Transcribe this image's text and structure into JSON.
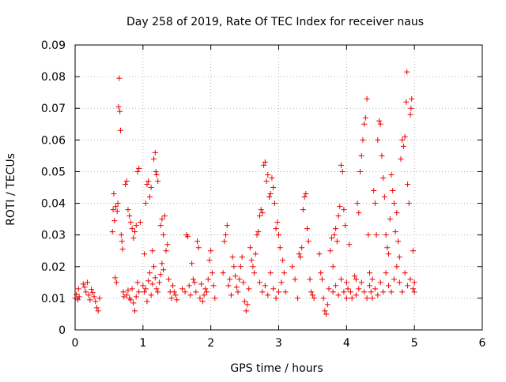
{
  "chart_data": {
    "type": "scatter",
    "title": "Day 258 of 2019, Rate Of TEC Index for receiver naus",
    "xlabel": "GPS time / hours",
    "ylabel": "ROTI / TECUs",
    "xlim": [
      0,
      6
    ],
    "ylim": [
      0,
      0.09
    ],
    "xticks": [
      "0",
      "1",
      "2",
      "3",
      "4",
      "5",
      "6"
    ],
    "yticks": [
      "0",
      "0.01",
      "0.02",
      "0.03",
      "0.04",
      "0.05",
      "0.06",
      "0.07",
      "0.08",
      "0.09"
    ],
    "grid": true,
    "marker": "+",
    "color": "#ee0000",
    "series": [
      {
        "name": "ROTI",
        "points": [
          [
            0.0,
            0.01
          ],
          [
            0.02,
            0.0112
          ],
          [
            0.04,
            0.0095
          ],
          [
            0.05,
            0.013
          ],
          [
            0.06,
            0.0105
          ],
          [
            0.12,
            0.0145
          ],
          [
            0.14,
            0.0135
          ],
          [
            0.16,
            0.012
          ],
          [
            0.18,
            0.015
          ],
          [
            0.2,
            0.011
          ],
          [
            0.22,
            0.0095
          ],
          [
            0.24,
            0.0128
          ],
          [
            0.26,
            0.0118
          ],
          [
            0.28,
            0.0105
          ],
          [
            0.3,
            0.009
          ],
          [
            0.32,
            0.007
          ],
          [
            0.34,
            0.006
          ],
          [
            0.36,
            0.01
          ],
          [
            0.55,
            0.031
          ],
          [
            0.56,
            0.038
          ],
          [
            0.57,
            0.043
          ],
          [
            0.58,
            0.0345
          ],
          [
            0.59,
            0.0165
          ],
          [
            0.6,
            0.039
          ],
          [
            0.61,
            0.015
          ],
          [
            0.62,
            0.0375
          ],
          [
            0.63,
            0.04
          ],
          [
            0.64,
            0.0705
          ],
          [
            0.65,
            0.0795
          ],
          [
            0.66,
            0.069
          ],
          [
            0.67,
            0.063
          ],
          [
            0.68,
            0.03
          ],
          [
            0.69,
            0.028
          ],
          [
            0.7,
            0.0255
          ],
          [
            0.71,
            0.012
          ],
          [
            0.72,
            0.0105
          ],
          [
            0.74,
            0.046
          ],
          [
            0.76,
            0.047
          ],
          [
            0.78,
            0.038
          ],
          [
            0.8,
            0.036
          ],
          [
            0.82,
            0.034
          ],
          [
            0.84,
            0.032
          ],
          [
            0.86,
            0.029
          ],
          [
            0.88,
            0.031
          ],
          [
            0.9,
            0.033
          ],
          [
            0.92,
            0.05
          ],
          [
            0.94,
            0.051
          ],
          [
            0.96,
            0.034
          ],
          [
            0.76,
            0.011
          ],
          [
            0.78,
            0.0125
          ],
          [
            0.8,
            0.01
          ],
          [
            0.82,
            0.0095
          ],
          [
            0.84,
            0.013
          ],
          [
            0.86,
            0.0085
          ],
          [
            0.88,
            0.006
          ],
          [
            0.9,
            0.0105
          ],
          [
            0.92,
            0.015
          ],
          [
            0.94,
            0.012
          ],
          [
            1.0,
            0.014
          ],
          [
            1.02,
            0.024
          ],
          [
            1.04,
            0.04
          ],
          [
            1.06,
            0.046
          ],
          [
            1.08,
            0.047
          ],
          [
            1.1,
            0.042
          ],
          [
            1.12,
            0.045
          ],
          [
            1.14,
            0.025
          ],
          [
            1.16,
            0.054
          ],
          [
            1.18,
            0.056
          ],
          [
            1.19,
            0.05
          ],
          [
            1.2,
            0.049
          ],
          [
            1.22,
            0.047
          ],
          [
            1.02,
            0.012
          ],
          [
            1.04,
            0.013
          ],
          [
            1.06,
            0.009
          ],
          [
            1.08,
            0.0155
          ],
          [
            1.1,
            0.018
          ],
          [
            1.12,
            0.011
          ],
          [
            1.14,
            0.0145
          ],
          [
            1.16,
            0.02
          ],
          [
            1.18,
            0.0165
          ],
          [
            1.2,
            0.013
          ],
          [
            1.22,
            0.012
          ],
          [
            1.24,
            0.015
          ],
          [
            1.26,
            0.0175
          ],
          [
            1.28,
            0.021
          ],
          [
            1.3,
            0.019
          ],
          [
            1.26,
            0.033
          ],
          [
            1.28,
            0.035
          ],
          [
            1.3,
            0.03
          ],
          [
            1.32,
            0.036
          ],
          [
            1.34,
            0.025
          ],
          [
            1.36,
            0.027
          ],
          [
            1.38,
            0.016
          ],
          [
            1.4,
            0.012
          ],
          [
            1.42,
            0.01
          ],
          [
            1.44,
            0.014
          ],
          [
            1.46,
            0.012
          ],
          [
            1.48,
            0.011
          ],
          [
            1.5,
            0.0095
          ],
          [
            1.58,
            0.013
          ],
          [
            1.62,
            0.012
          ],
          [
            1.64,
            0.03
          ],
          [
            1.66,
            0.0295
          ],
          [
            1.68,
            0.014
          ],
          [
            1.7,
            0.011
          ],
          [
            1.72,
            0.021
          ],
          [
            1.74,
            0.016
          ],
          [
            1.76,
            0.015
          ],
          [
            1.78,
            0.012
          ],
          [
            1.8,
            0.028
          ],
          [
            1.82,
            0.026
          ],
          [
            1.84,
            0.01
          ],
          [
            1.86,
            0.0145
          ],
          [
            1.88,
            0.009
          ],
          [
            1.9,
            0.011
          ],
          [
            1.92,
            0.013
          ],
          [
            1.94,
            0.012
          ],
          [
            1.96,
            0.016
          ],
          [
            1.98,
            0.022
          ],
          [
            2.0,
            0.025
          ],
          [
            2.02,
            0.018
          ],
          [
            2.04,
            0.014
          ],
          [
            2.06,
            0.01
          ],
          [
            2.18,
            0.018
          ],
          [
            2.2,
            0.028
          ],
          [
            2.22,
            0.03
          ],
          [
            2.24,
            0.033
          ],
          [
            2.26,
            0.014
          ],
          [
            2.28,
            0.016
          ],
          [
            2.3,
            0.011
          ],
          [
            2.32,
            0.023
          ],
          [
            2.34,
            0.02
          ],
          [
            2.36,
            0.017
          ],
          [
            2.38,
            0.0135
          ],
          [
            2.4,
            0.012
          ],
          [
            2.42,
            0.016
          ],
          [
            2.44,
            0.02
          ],
          [
            2.46,
            0.023
          ],
          [
            2.48,
            0.015
          ],
          [
            2.5,
            0.009
          ],
          [
            2.52,
            0.006
          ],
          [
            2.54,
            0.008
          ],
          [
            2.56,
            0.013
          ],
          [
            2.58,
            0.026
          ],
          [
            2.6,
            0.022
          ],
          [
            2.62,
            0.02
          ],
          [
            2.64,
            0.018
          ],
          [
            2.66,
            0.024
          ],
          [
            2.68,
            0.03
          ],
          [
            2.7,
            0.031
          ],
          [
            2.72,
            0.036
          ],
          [
            2.74,
            0.038
          ],
          [
            2.76,
            0.037
          ],
          [
            2.78,
            0.052
          ],
          [
            2.8,
            0.053
          ],
          [
            2.82,
            0.047
          ],
          [
            2.84,
            0.049
          ],
          [
            2.86,
            0.042
          ],
          [
            2.88,
            0.043
          ],
          [
            2.9,
            0.048
          ],
          [
            2.92,
            0.045
          ],
          [
            2.94,
            0.04
          ],
          [
            2.96,
            0.032
          ],
          [
            2.98,
            0.034
          ],
          [
            3.0,
            0.03
          ],
          [
            3.02,
            0.026
          ],
          [
            2.72,
            0.015
          ],
          [
            2.76,
            0.012
          ],
          [
            2.8,
            0.014
          ],
          [
            2.84,
            0.011
          ],
          [
            2.88,
            0.018
          ],
          [
            2.92,
            0.013
          ],
          [
            2.96,
            0.01
          ],
          [
            3.0,
            0.012
          ],
          [
            3.04,
            0.015
          ],
          [
            3.06,
            0.022
          ],
          [
            3.08,
            0.018
          ],
          [
            3.1,
            0.012
          ],
          [
            3.2,
            0.02
          ],
          [
            3.24,
            0.016
          ],
          [
            3.28,
            0.01
          ],
          [
            3.3,
            0.024
          ],
          [
            3.32,
            0.023
          ],
          [
            3.34,
            0.026
          ],
          [
            3.36,
            0.038
          ],
          [
            3.38,
            0.042
          ],
          [
            3.4,
            0.043
          ],
          [
            3.42,
            0.032
          ],
          [
            3.44,
            0.028
          ],
          [
            3.46,
            0.016
          ],
          [
            3.48,
            0.012
          ],
          [
            3.5,
            0.011
          ],
          [
            3.52,
            0.01
          ],
          [
            3.6,
            0.024
          ],
          [
            3.62,
            0.018
          ],
          [
            3.64,
            0.016
          ],
          [
            3.66,
            0.01
          ],
          [
            3.68,
            0.006
          ],
          [
            3.7,
            0.005
          ],
          [
            3.72,
            0.008
          ],
          [
            3.74,
            0.013
          ],
          [
            3.76,
            0.025
          ],
          [
            3.78,
            0.029
          ],
          [
            3.8,
            0.02
          ],
          [
            3.82,
            0.03
          ],
          [
            3.84,
            0.032
          ],
          [
            3.86,
            0.028
          ],
          [
            3.88,
            0.036
          ],
          [
            3.9,
            0.039
          ],
          [
            3.92,
            0.052
          ],
          [
            3.94,
            0.05
          ],
          [
            3.96,
            0.038
          ],
          [
            3.98,
            0.033
          ],
          [
            4.0,
            0.015
          ],
          [
            4.02,
            0.013
          ],
          [
            4.04,
            0.027
          ],
          [
            4.06,
            0.012
          ],
          [
            4.08,
            0.01
          ],
          [
            3.8,
            0.012
          ],
          [
            3.84,
            0.014
          ],
          [
            3.88,
            0.011
          ],
          [
            3.92,
            0.016
          ],
          [
            3.96,
            0.012
          ],
          [
            4.0,
            0.01
          ],
          [
            4.12,
            0.017
          ],
          [
            4.14,
            0.016
          ],
          [
            4.16,
            0.04
          ],
          [
            4.18,
            0.037
          ],
          [
            4.2,
            0.05
          ],
          [
            4.22,
            0.055
          ],
          [
            4.24,
            0.06
          ],
          [
            4.26,
            0.065
          ],
          [
            4.28,
            0.067
          ],
          [
            4.3,
            0.073
          ],
          [
            4.32,
            0.03
          ],
          [
            4.34,
            0.018
          ],
          [
            4.36,
            0.012
          ],
          [
            4.38,
            0.01
          ],
          [
            4.4,
            0.044
          ],
          [
            4.42,
            0.04
          ],
          [
            4.44,
            0.03
          ],
          [
            4.46,
            0.06
          ],
          [
            4.48,
            0.066
          ],
          [
            4.5,
            0.065
          ],
          [
            4.52,
            0.055
          ],
          [
            4.54,
            0.048
          ],
          [
            4.56,
            0.042
          ],
          [
            4.58,
            0.03
          ],
          [
            4.6,
            0.026
          ],
          [
            4.62,
            0.024
          ],
          [
            4.64,
            0.035
          ],
          [
            4.66,
            0.049
          ],
          [
            4.68,
            0.044
          ],
          [
            4.7,
            0.04
          ],
          [
            4.72,
            0.031
          ],
          [
            4.74,
            0.037
          ],
          [
            4.76,
            0.028
          ],
          [
            4.78,
            0.023
          ],
          [
            4.8,
            0.054
          ],
          [
            4.82,
            0.06
          ],
          [
            4.84,
            0.058
          ],
          [
            4.86,
            0.061
          ],
          [
            4.88,
            0.072
          ],
          [
            4.89,
            0.0815
          ],
          [
            4.9,
            0.046
          ],
          [
            4.92,
            0.04
          ],
          [
            4.94,
            0.068
          ],
          [
            4.95,
            0.07
          ],
          [
            4.96,
            0.073
          ],
          [
            4.98,
            0.025
          ],
          [
            5.0,
            0.012
          ],
          [
            4.14,
            0.011
          ],
          [
            4.18,
            0.013
          ],
          [
            4.22,
            0.015
          ],
          [
            4.26,
            0.012
          ],
          [
            4.3,
            0.01
          ],
          [
            4.34,
            0.014
          ],
          [
            4.38,
            0.016
          ],
          [
            4.42,
            0.013
          ],
          [
            4.46,
            0.011
          ],
          [
            4.5,
            0.015
          ],
          [
            4.54,
            0.012
          ],
          [
            4.58,
            0.018
          ],
          [
            4.62,
            0.014
          ],
          [
            4.66,
            0.012
          ],
          [
            4.7,
            0.016
          ],
          [
            4.74,
            0.02
          ],
          [
            4.78,
            0.015
          ],
          [
            4.82,
            0.012
          ],
          [
            4.86,
            0.018
          ],
          [
            4.9,
            0.014
          ],
          [
            4.94,
            0.016
          ],
          [
            4.98,
            0.013
          ],
          [
            5.0,
            0.015
          ]
        ]
      }
    ]
  }
}
